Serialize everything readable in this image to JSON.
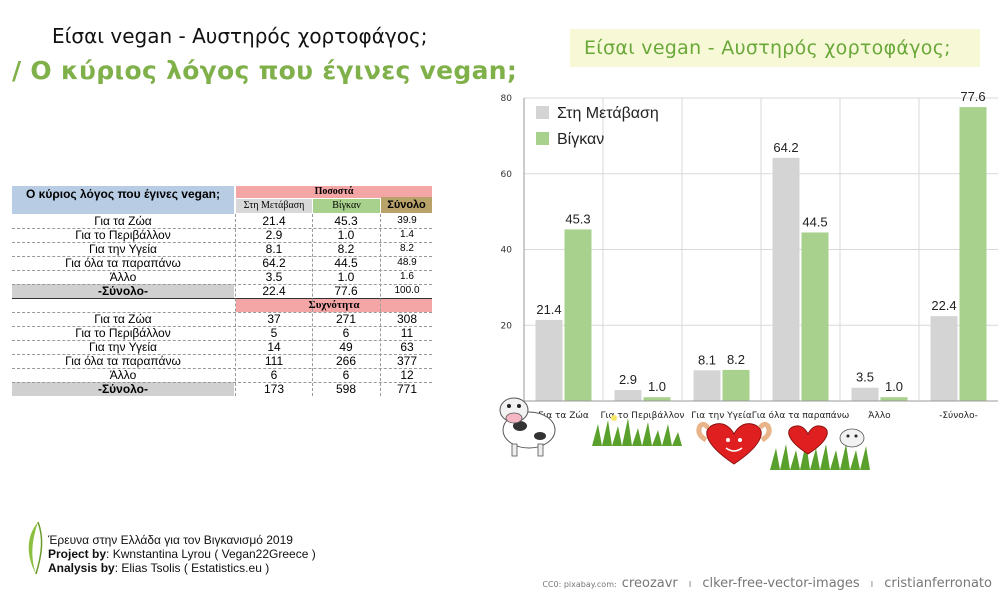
{
  "page": {
    "title_line1": "Είσαι vegan - Αυστηρός χορτοφάγος;",
    "title_line2": "/ Ο κύριος λόγος που έγινες vegan;",
    "chart_title": "Είσαι vegan - Αυστηρός χορτοφάγος;"
  },
  "table": {
    "header_question": "Ο κύριος λόγος που έγινες vegan;",
    "header_percent": "Ποσοστά",
    "header_transition": "Στη Μετάβαση",
    "header_vegan": "Βίγκαν",
    "header_total": "Σύνολο",
    "header_frequency": "Συχνότητα",
    "percent_rows": [
      {
        "label": "Για τα Ζώα",
        "a": "21.4",
        "b": "45.3",
        "t": "39.9"
      },
      {
        "label": "Για το Περιβάλλον",
        "a": "2.9",
        "b": "1.0",
        "t": "1.4"
      },
      {
        "label": "Για την Υγεία",
        "a": "8.1",
        "b": "8.2",
        "t": "8.2"
      },
      {
        "label": "Για όλα τα παραπάνω",
        "a": "64.2",
        "b": "44.5",
        "t": "48.9"
      },
      {
        "label": "Άλλο",
        "a": "3.5",
        "b": "1.0",
        "t": "1.6"
      },
      {
        "label": "-Σύνολο-",
        "a": "22.4",
        "b": "77.6",
        "t": "100.0"
      }
    ],
    "freq_rows": [
      {
        "label": "Για τα Ζώα",
        "a": "37",
        "b": "271",
        "t": "308"
      },
      {
        "label": "Για το Περιβάλλον",
        "a": "5",
        "b": "6",
        "t": "11"
      },
      {
        "label": "Για την Υγεία",
        "a": "14",
        "b": "49",
        "t": "63"
      },
      {
        "label": "Για όλα τα παραπάνω",
        "a": "111",
        "b": "266",
        "t": "377"
      },
      {
        "label": "Άλλο",
        "a": "6",
        "b": "6",
        "t": "12"
      },
      {
        "label": "-Σύνολο-",
        "a": "173",
        "b": "598",
        "t": "771"
      }
    ]
  },
  "credits": {
    "survey": "Έρευνα στην Ελλάδα για τον Βιγκανισμό 2019",
    "project_label": "Project by",
    "project_value": ":  Kwnstantina Lyrou ( Vegan22Greece )",
    "analysis_label": "Analysis by",
    "analysis_value": ": Elias Tsolis ( Estatistics.eu )",
    "cc0_label": "CC0: pixabay.com:",
    "author1": "creozavr",
    "author2": "clker-free-vector-images",
    "author3": "cristianferronato",
    "divider": "I"
  },
  "colors": {
    "transition": "#d4d4d4",
    "vegan": "#a9d18e",
    "accent_green": "#7fb04a"
  },
  "chart_data": {
    "type": "bar",
    "title": "Είσαι vegan - Αυστηρός χορτοφάγος;",
    "categories": [
      "Για τα Ζώα",
      "Για το Περιβάλλον",
      "Για την Υγεία",
      "Για όλα τα παραπάνω",
      "Άλλο",
      "-Σύνολο-"
    ],
    "series": [
      {
        "name": "Στη Μετάβαση",
        "values": [
          21.4,
          2.9,
          8.1,
          64.2,
          3.5,
          22.4
        ]
      },
      {
        "name": "Βίγκαν",
        "values": [
          45.3,
          1.0,
          8.2,
          44.5,
          1.0,
          77.6
        ]
      }
    ],
    "value_labels": [
      [
        "21.4",
        "2.9",
        "8.1",
        "64.2",
        "3.5",
        "22.4"
      ],
      [
        "45.3",
        "1.0",
        "8.2",
        "44.5",
        "1.0",
        "77.6"
      ]
    ],
    "yticks": [
      "20",
      "40",
      "60",
      "80"
    ],
    "ylim": [
      0,
      80
    ],
    "xlabel": "",
    "ylabel": "",
    "grid": true,
    "legend": "top-left"
  }
}
